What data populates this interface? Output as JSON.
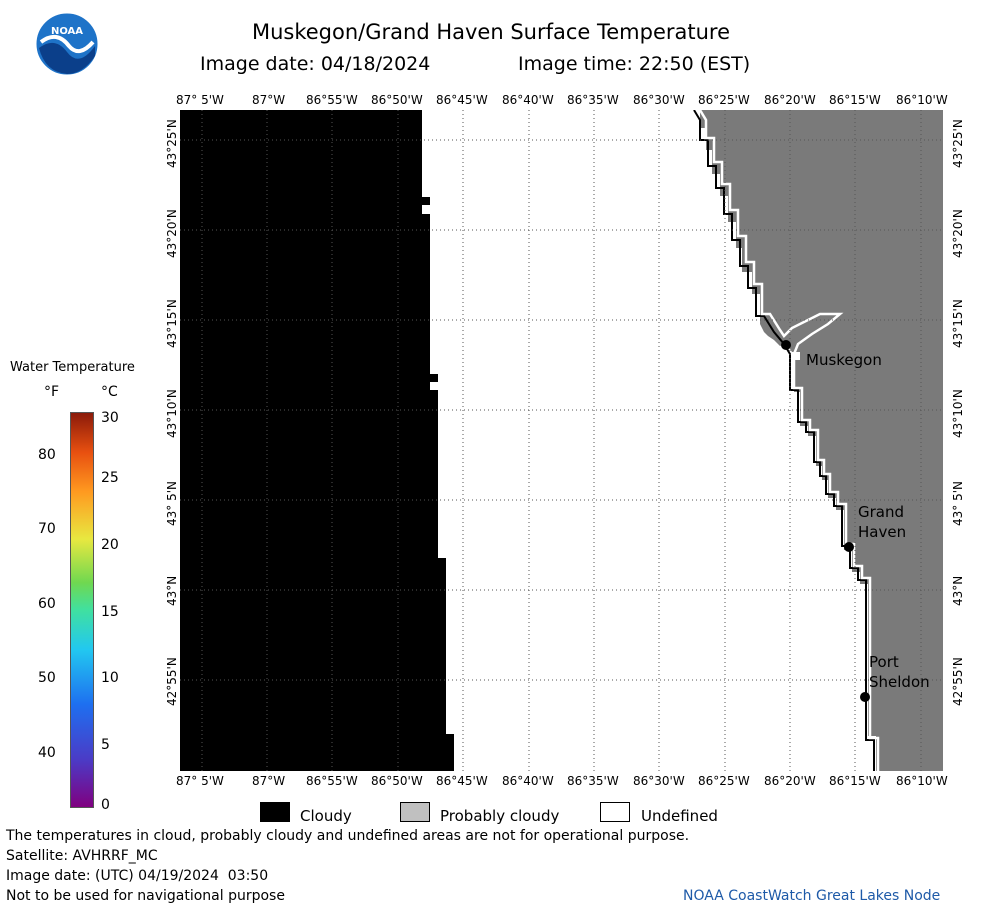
{
  "header": {
    "title": "Muskegon/Grand Haven Surface Temperature",
    "image_date_label": "Image date: 04/18/2024",
    "image_time_label": "Image time: 22:50 (EST)"
  },
  "logo": {
    "text": "NOAA"
  },
  "map": {
    "lon_ticks": [
      "87° 5'W",
      "87°W",
      "86°55'W",
      "86°50'W",
      "86°45'W",
      "86°40'W",
      "86°35'W",
      "86°30'W",
      "86°25'W",
      "86°20'W",
      "86°15'W",
      "86°10'W"
    ],
    "lat_ticks": [
      "43°25'N",
      "43°20'N",
      "43°15'N",
      "43°10'N",
      "43° 5'N",
      "43°N",
      "42°55'N"
    ],
    "cities": [
      {
        "name": "Muskegon"
      },
      {
        "name": "Grand\nHaven"
      },
      {
        "name": "Port\nSheldon"
      }
    ],
    "colors": {
      "cloudy": "#000000",
      "probably_cloudy": "#808080",
      "undefined": "#ffffff",
      "grid": "#555555"
    }
  },
  "colorbar": {
    "title": "Water Temperature",
    "unit_f": "°F",
    "unit_c": "°C",
    "f_ticks": [
      "80",
      "70",
      "60",
      "50",
      "40"
    ],
    "c_ticks": [
      "30",
      "25",
      "20",
      "15",
      "10",
      "5",
      "0"
    ],
    "colors": [
      "#800080",
      "#4b3bc6",
      "#1e6ff0",
      "#22c8f0",
      "#40e0a0",
      "#70d850",
      "#e8e840",
      "#ff9a20",
      "#e85010",
      "#8b1a0a"
    ]
  },
  "legend": {
    "items": [
      {
        "label": "Cloudy",
        "color": "#000000"
      },
      {
        "label": "Probably cloudy",
        "color": "#c0c0c0"
      },
      {
        "label": "Undefined",
        "color": "#ffffff"
      }
    ]
  },
  "footer": {
    "disclaimer": "The temperatures in cloud, probably cloudy and undefined areas are not for operational purpose.",
    "satellite": "Satellite: AVHRRF_MC",
    "utc_date": "Image date: (UTC) 04/19/2024  03:50",
    "nav_warning": "Not to be used for navigational purpose",
    "credit": "NOAA CoastWatch Great Lakes Node"
  }
}
